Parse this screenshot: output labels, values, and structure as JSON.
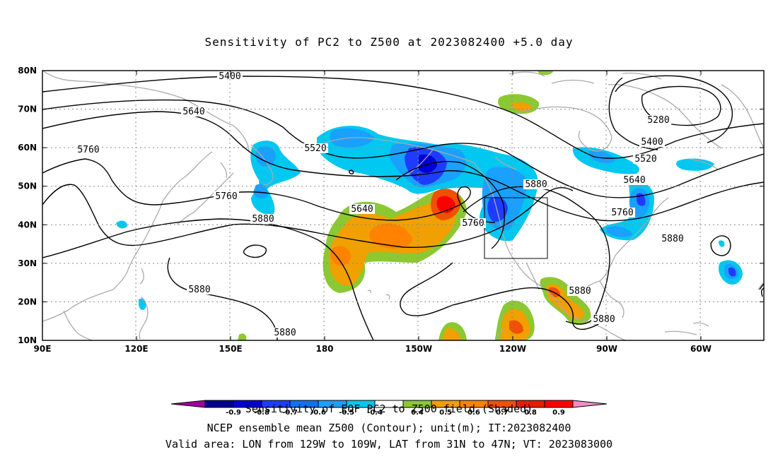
{
  "title": "Sensitivity of PC2 to Z500 at 2023082400 +5.0 day",
  "lat_labels": [
    "80N",
    "70N",
    "60N",
    "50N",
    "40N",
    "30N",
    "20N",
    "10N"
  ],
  "lon_labels": [
    "90E",
    "120E",
    "150E",
    "180",
    "150W",
    "120W",
    "90W",
    "60W"
  ],
  "contour_labels": [
    "5400",
    "5640",
    "5760",
    "5520",
    "5280",
    "5400",
    "5520",
    "5640",
    "5760",
    "5880",
    "5880",
    "5880",
    "5880",
    "5760",
    "5640",
    "5760",
    "5880",
    "5880",
    "5880"
  ],
  "colorbar": {
    "labels": [
      "-0.9",
      "-0.8",
      "-0.7",
      "-0.6",
      "-0.5",
      "-0.4",
      "0.4",
      "0.5",
      "0.6",
      "0.7",
      "0.8",
      "0.9"
    ],
    "colors": [
      "#a0009f",
      "#00008c",
      "#0000d2",
      "#1e3cff",
      "#0c73f0",
      "#1aa0ff",
      "#00c8f0",
      "#ffffff",
      "#8cc832",
      "#f0a000",
      "#ff8200",
      "#f05000",
      "#e61e00",
      "#ff0000",
      "#f08cc8"
    ]
  },
  "footer": {
    "line1": "Sensitivity of EOF PC2 to Z500 field (Shaded)",
    "line2": "NCEP ensemble mean Z500 (Contour); unit(m); IT:2023082400",
    "line3": "Valid area: LON from 129W to 109W, LAT from 31N to 47N; VT: 2023083000"
  }
}
